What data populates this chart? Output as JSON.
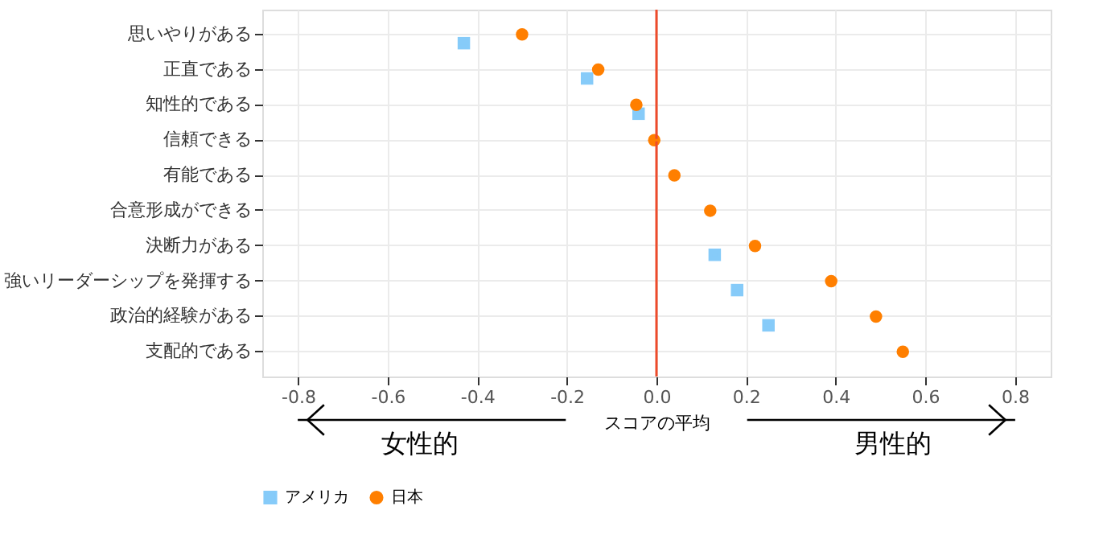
{
  "chart_data": {
    "type": "scatter",
    "orientation": "horizontal",
    "categories": [
      "思いやりがある",
      "正直である",
      "知性的である",
      "信頼できる",
      "有能である",
      "合意形成ができる",
      "決断力がある",
      "強いリーダーシップを発揮する",
      "政治的経験がある",
      "支配的である"
    ],
    "series": [
      {
        "name": "アメリカ",
        "color": "#86cbf9",
        "marker": "square",
        "values": [
          -0.43,
          -0.155,
          -0.04,
          null,
          null,
          null,
          0.13,
          0.18,
          0.25,
          null
        ],
        "errors": [
          0.01,
          0.005,
          0.005,
          null,
          null,
          null,
          0.005,
          0.01,
          0.01,
          null
        ]
      },
      {
        "name": "日本",
        "color": "#ff7f00",
        "marker": "circle",
        "values": [
          -0.3,
          -0.13,
          -0.045,
          -0.005,
          0.04,
          0.12,
          0.22,
          0.39,
          0.49,
          0.55
        ],
        "errors": [
          0.01,
          0.01,
          0.01,
          0.01,
          0.005,
          0.01,
          0.01,
          0.01,
          0.01,
          0.01
        ]
      }
    ],
    "xlabel": "スコアの平均",
    "xlim": [
      -0.88,
      0.88
    ],
    "xticks": [
      {
        "value": -0.8,
        "label": "-0.8"
      },
      {
        "value": -0.6,
        "label": "-0.6"
      },
      {
        "value": -0.4,
        "label": "-0.4"
      },
      {
        "value": -0.2,
        "label": "-0.2"
      },
      {
        "value": 0,
        "label": "0.0"
      },
      {
        "value": 0.2,
        "label": "0.2"
      },
      {
        "value": 0.4,
        "label": "0.4"
      },
      {
        "value": 0.6,
        "label": "0.6"
      },
      {
        "value": 0.8,
        "label": "0.8"
      }
    ],
    "ref_lines": [
      {
        "axis": "x",
        "value": 0,
        "color": "#ee4b2b"
      }
    ],
    "annotations": [
      "女性的",
      "男性的"
    ],
    "grid": true,
    "legend": "bottom"
  }
}
